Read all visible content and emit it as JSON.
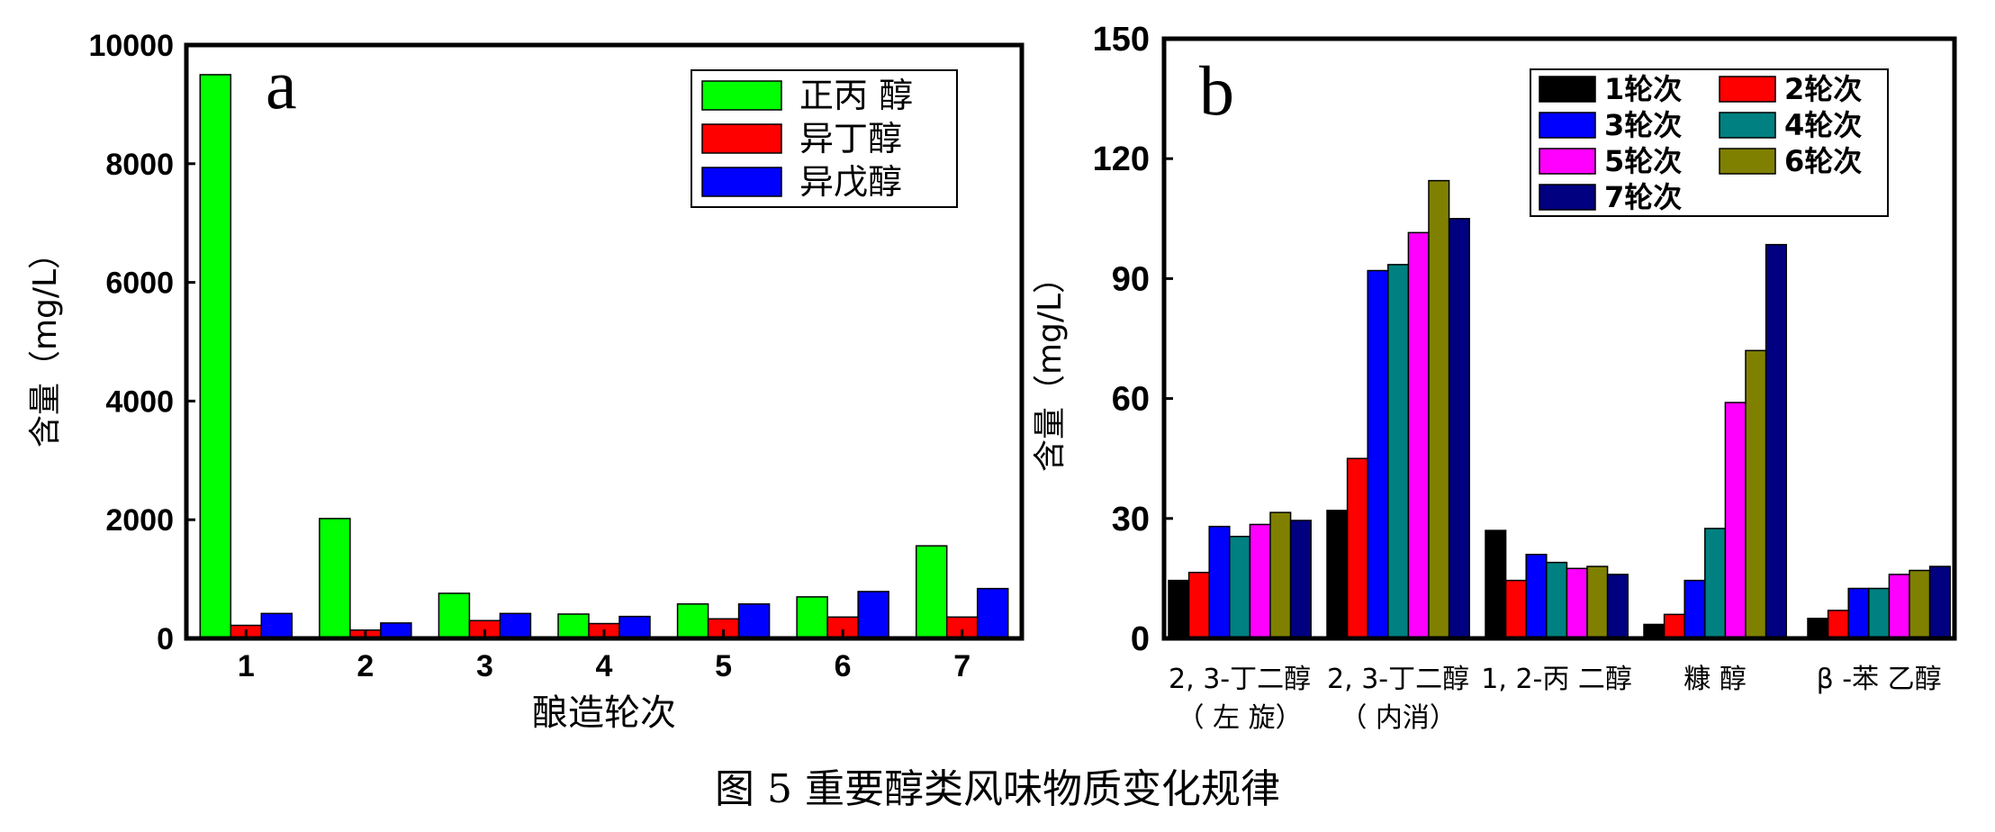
{
  "caption": "图 5  重要醇类风味物质变化规律",
  "chart_data": [
    {
      "type": "bar",
      "panel": "a",
      "title": "",
      "xlabel": "酿造轮次",
      "ylabel": "含量（mg/L）",
      "ylim": [
        0,
        10000
      ],
      "yticks": [
        0,
        2000,
        4000,
        6000,
        8000,
        10000
      ],
      "ytick_labels": [
        "0",
        "2000",
        "4000",
        "6000",
        "8000",
        "10000"
      ],
      "categories": [
        "1",
        "2",
        "3",
        "4",
        "5",
        "6",
        "7"
      ],
      "legend_position": "top-right",
      "series": [
        {
          "name": "正丙 醇",
          "color": "#00ff00",
          "values": [
            9500,
            2020,
            760,
            410,
            580,
            700,
            1560
          ]
        },
        {
          "name": "异丁醇",
          "color": "#ff0000",
          "values": [
            220,
            140,
            300,
            250,
            330,
            360,
            360
          ]
        },
        {
          "name": "异戊醇",
          "color": "#0000ff",
          "values": [
            420,
            260,
            420,
            370,
            580,
            790,
            840
          ]
        }
      ]
    },
    {
      "type": "bar",
      "panel": "b",
      "title": "",
      "xlabel": "",
      "ylabel": "含量（mg/L）",
      "ylim": [
        0,
        150
      ],
      "yticks": [
        0,
        30,
        60,
        90,
        120,
        150
      ],
      "ytick_labels": [
        "0",
        "30",
        "60",
        "90",
        "120",
        "150"
      ],
      "categories": [
        {
          "line1": "2, 3-丁二醇",
          "line2": "（ 左  旋）"
        },
        {
          "line1": "2, 3-丁二醇",
          "line2": "（ 内消）"
        },
        {
          "line1": "1, 2-丙  二醇",
          "line2": ""
        },
        {
          "line1": "糠  醇",
          "line2": ""
        },
        {
          "line1": "β -苯  乙醇",
          "line2": ""
        }
      ],
      "legend_position": "top-right",
      "series": [
        {
          "name": "1轮次",
          "color": "#000000",
          "values": [
            14.5,
            32,
            27,
            3.5,
            5
          ]
        },
        {
          "name": "2轮次",
          "color": "#ff0000",
          "values": [
            16.5,
            45,
            14.5,
            6,
            7
          ]
        },
        {
          "name": "3轮次",
          "color": "#0000ff",
          "values": [
            28,
            92,
            21,
            14.5,
            12.5
          ]
        },
        {
          "name": "4轮次",
          "color": "#008080",
          "values": [
            25.5,
            93.5,
            19,
            27.5,
            12.5
          ]
        },
        {
          "name": "5轮次",
          "color": "#ff00ff",
          "values": [
            28.5,
            101.5,
            17.5,
            59,
            16
          ]
        },
        {
          "name": "6轮次",
          "color": "#808000",
          "values": [
            31.5,
            114.5,
            18,
            72,
            17
          ]
        },
        {
          "name": "7轮次",
          "color": "#000080",
          "values": [
            29.5,
            105,
            16,
            98.5,
            18
          ]
        }
      ]
    }
  ]
}
